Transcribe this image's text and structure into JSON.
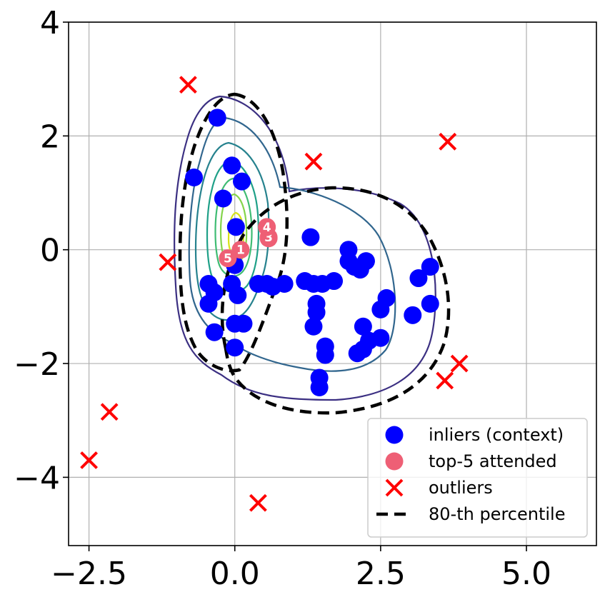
{
  "chart_data": {
    "type": "scatter",
    "title": "",
    "xlabel": "",
    "ylabel": "",
    "xlim": [
      -2.85,
      6.2
    ],
    "ylim": [
      -5.2,
      4.0
    ],
    "grid": true,
    "legend_position": "lower-right",
    "x_ticks": [
      {
        "value": -2.5,
        "label": "−2.5"
      },
      {
        "value": 0.0,
        "label": "0.0"
      },
      {
        "value": 2.5,
        "label": "2.5"
      },
      {
        "value": 5.0,
        "label": "5.0"
      }
    ],
    "y_ticks": [
      {
        "value": 4,
        "label": "4"
      },
      {
        "value": 2,
        "label": "2"
      },
      {
        "value": 0,
        "label": "0"
      },
      {
        "value": -2,
        "label": "−2"
      },
      {
        "value": -4,
        "label": "−4"
      }
    ],
    "colors": {
      "inliers": "#0000ff",
      "attended": "#ee5f75",
      "outliers": "#ff0000",
      "percentile": "#000000",
      "grid": "#b0b0b0"
    },
    "legend": [
      {
        "label": "inliers (context)",
        "kind": "inliers"
      },
      {
        "label": "top-5 attended",
        "kind": "attended"
      },
      {
        "label": "outliers",
        "kind": "outliers"
      },
      {
        "label": "80-th percentile",
        "kind": "percentile"
      }
    ],
    "series": [
      {
        "name": "inliers (context)",
        "marker": "circle",
        "points": [
          [
            -0.3,
            2.32
          ],
          [
            -0.7,
            1.27
          ],
          [
            -0.2,
            0.9
          ],
          [
            -0.05,
            1.48
          ],
          [
            0.12,
            1.2
          ],
          [
            0.02,
            0.4
          ],
          [
            0.0,
            -0.27
          ],
          [
            -0.45,
            -0.6
          ],
          [
            -0.35,
            -0.75
          ],
          [
            -0.45,
            -0.95
          ],
          [
            -0.35,
            -1.45
          ],
          [
            -0.05,
            -0.6
          ],
          [
            0.05,
            -0.8
          ],
          [
            0.0,
            -1.3
          ],
          [
            0.15,
            -1.3
          ],
          [
            0.4,
            -0.6
          ],
          [
            0.55,
            -0.6
          ],
          [
            0.65,
            -0.65
          ],
          [
            0.85,
            -0.6
          ],
          [
            0.0,
            -1.72
          ],
          [
            1.2,
            -0.55
          ],
          [
            1.35,
            -0.6
          ],
          [
            1.5,
            -0.6
          ],
          [
            1.4,
            -0.95
          ],
          [
            1.4,
            -1.1
          ],
          [
            1.35,
            -1.35
          ],
          [
            1.55,
            -1.7
          ],
          [
            1.55,
            -1.85
          ],
          [
            1.45,
            -2.25
          ],
          [
            1.45,
            -2.42
          ],
          [
            1.3,
            0.22
          ],
          [
            1.7,
            -0.55
          ],
          [
            1.95,
            0.0
          ],
          [
            1.95,
            -0.2
          ],
          [
            2.05,
            -0.3
          ],
          [
            2.15,
            -0.35
          ],
          [
            2.25,
            -0.2
          ],
          [
            2.2,
            -1.35
          ],
          [
            2.3,
            -1.6
          ],
          [
            2.2,
            -1.75
          ],
          [
            2.1,
            -1.82
          ],
          [
            2.5,
            -1.05
          ],
          [
            2.6,
            -0.85
          ],
          [
            2.5,
            -1.55
          ],
          [
            3.05,
            -1.15
          ],
          [
            3.15,
            -0.5
          ],
          [
            3.35,
            -0.3
          ],
          [
            3.35,
            -0.95
          ]
        ]
      },
      {
        "name": "top-5 attended",
        "marker": "circle",
        "points": [
          {
            "x": 0.1,
            "y": 0.0,
            "rank": "1"
          },
          {
            "x": 0.58,
            "y": 0.2,
            "rank": "2"
          },
          {
            "x": 0.58,
            "y": 0.22,
            "rank": "3"
          },
          {
            "x": 0.55,
            "y": 0.4,
            "rank": "4"
          },
          {
            "x": -0.12,
            "y": -0.15,
            "rank": "5"
          }
        ]
      },
      {
        "name": "outliers",
        "marker": "x",
        "points": [
          [
            -0.8,
            2.9
          ],
          [
            1.35,
            1.55
          ],
          [
            3.65,
            1.9
          ],
          [
            -1.15,
            -0.22
          ],
          [
            3.85,
            -2.0
          ],
          [
            3.6,
            -2.3
          ],
          [
            -2.15,
            -2.85
          ],
          [
            -2.5,
            -3.7
          ],
          [
            0.4,
            -4.45
          ]
        ]
      }
    ]
  }
}
